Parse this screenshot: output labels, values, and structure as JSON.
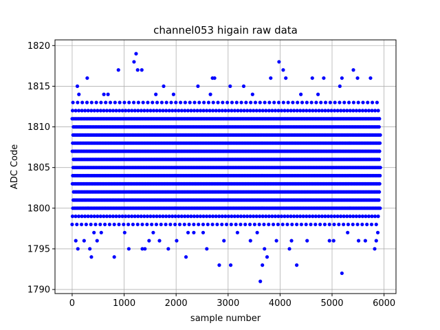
{
  "chart_data": {
    "type": "scatter",
    "title": "channel053 higain raw data",
    "xlabel": "sample number",
    "ylabel": "ADC Code",
    "xlim": [
      -330,
      6230
    ],
    "ylim": [
      1789.5,
      1820.7
    ],
    "xticks": [
      0,
      1000,
      2000,
      3000,
      4000,
      5000,
      6000
    ],
    "yticks": [
      1790,
      1795,
      1800,
      1805,
      1810,
      1815,
      1820
    ],
    "grid": true,
    "marker_color": "#0000ff",
    "core_levels": [
      1798,
      1799,
      1800,
      1801,
      1802,
      1803,
      1804,
      1805,
      1806,
      1807,
      1808,
      1809,
      1810,
      1811,
      1812,
      1813
    ],
    "core_x_range": [
      0,
      5930
    ],
    "core_x_step": 30,
    "outliers": [
      [
        70,
        1796
      ],
      [
        110,
        1795
      ],
      [
        100,
        1815
      ],
      [
        130,
        1814
      ],
      [
        230,
        1796
      ],
      [
        290,
        1816
      ],
      [
        340,
        1795
      ],
      [
        370,
        1794
      ],
      [
        420,
        1797
      ],
      [
        480,
        1796
      ],
      [
        560,
        1797
      ],
      [
        610,
        1814
      ],
      [
        690,
        1814
      ],
      [
        810,
        1794
      ],
      [
        890,
        1817
      ],
      [
        1010,
        1797
      ],
      [
        1090,
        1795
      ],
      [
        1190,
        1818
      ],
      [
        1230,
        1819
      ],
      [
        1260,
        1817
      ],
      [
        1340,
        1817
      ],
      [
        1350,
        1795
      ],
      [
        1400,
        1795
      ],
      [
        1480,
        1796
      ],
      [
        1560,
        1797
      ],
      [
        1610,
        1814
      ],
      [
        1680,
        1796
      ],
      [
        1760,
        1815
      ],
      [
        1850,
        1795
      ],
      [
        1950,
        1814
      ],
      [
        2010,
        1796
      ],
      [
        2190,
        1794
      ],
      [
        2230,
        1797
      ],
      [
        2340,
        1797
      ],
      [
        2420,
        1815
      ],
      [
        2520,
        1797
      ],
      [
        2590,
        1795
      ],
      [
        2660,
        1814
      ],
      [
        2700,
        1816
      ],
      [
        2740,
        1816
      ],
      [
        2830,
        1793
      ],
      [
        2920,
        1796
      ],
      [
        3040,
        1815
      ],
      [
        3050,
        1793
      ],
      [
        3180,
        1797
      ],
      [
        3300,
        1815
      ],
      [
        3430,
        1796
      ],
      [
        3470,
        1814
      ],
      [
        3560,
        1797
      ],
      [
        3620,
        1791
      ],
      [
        3660,
        1793
      ],
      [
        3700,
        1795
      ],
      [
        3750,
        1794
      ],
      [
        3820,
        1816
      ],
      [
        3930,
        1796
      ],
      [
        3980,
        1818
      ],
      [
        4060,
        1817
      ],
      [
        4110,
        1816
      ],
      [
        4180,
        1795
      ],
      [
        4220,
        1796
      ],
      [
        4320,
        1793
      ],
      [
        4400,
        1814
      ],
      [
        4520,
        1796
      ],
      [
        4620,
        1816
      ],
      [
        4730,
        1814
      ],
      [
        4840,
        1816
      ],
      [
        4950,
        1796
      ],
      [
        5030,
        1796
      ],
      [
        5150,
        1815
      ],
      [
        5190,
        1816
      ],
      [
        5190,
        1792
      ],
      [
        5300,
        1797
      ],
      [
        5410,
        1817
      ],
      [
        5490,
        1816
      ],
      [
        5510,
        1796
      ],
      [
        5640,
        1796
      ],
      [
        5740,
        1816
      ],
      [
        5820,
        1795
      ],
      [
        5850,
        1796
      ],
      [
        5880,
        1797
      ]
    ]
  }
}
